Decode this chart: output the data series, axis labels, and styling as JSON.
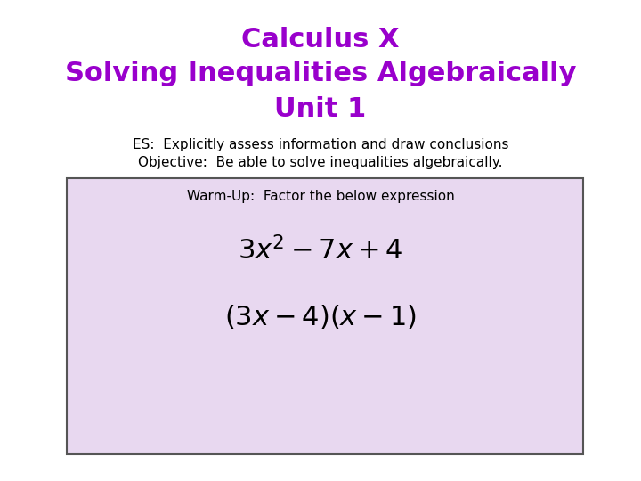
{
  "title_line1": "Calculus X",
  "title_line2": "Solving Inequalities Algebraically",
  "title_line3": "Unit 1",
  "title_color": "#9900cc",
  "title_fontsize": 22,
  "es_text": "ES:  Explicitly assess information and draw conclusions",
  "objective_text": "Objective:  Be able to solve inequalities algebraically.",
  "es_fontsize": 11,
  "warmup_label": "Warm-Up:  Factor the below expression",
  "warmup_fontsize": 11,
  "box_facecolor": "#e8d8f0",
  "box_edgecolor": "#555555",
  "math_expr1": "$3x^2 - 7x + 4$",
  "math_expr2": "$(3x - 4)(x - 1)$",
  "math_fontsize": 22,
  "bg_color": "#ffffff"
}
